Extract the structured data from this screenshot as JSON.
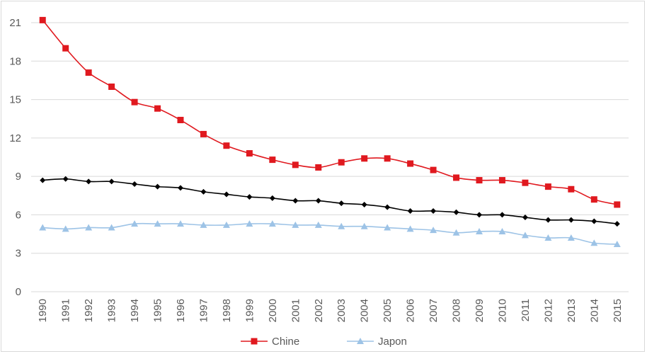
{
  "chart_data": {
    "type": "line",
    "title": "",
    "xlabel": "",
    "ylabel": "",
    "ylim": [
      0,
      21
    ],
    "yticks": [
      0,
      3,
      6,
      9,
      12,
      15,
      18,
      21
    ],
    "grid": true,
    "legend_position": "bottom",
    "categories": [
      "1990",
      "1991",
      "1992",
      "1993",
      "1994",
      "1995",
      "1996",
      "1997",
      "1998",
      "1999",
      "2000",
      "2001",
      "2002",
      "2003",
      "2004",
      "2005",
      "2006",
      "2007",
      "2008",
      "2009",
      "2010",
      "2011",
      "2012",
      "2013",
      "2014",
      "2015"
    ],
    "series": [
      {
        "name": "Chine",
        "color": "#e0191f",
        "marker": "square",
        "show_in_legend": true,
        "values": [
          21.2,
          19.0,
          17.1,
          16.0,
          14.8,
          14.3,
          13.4,
          12.3,
          11.4,
          10.8,
          10.3,
          9.9,
          9.7,
          10.1,
          10.4,
          10.4,
          10.0,
          9.5,
          8.9,
          8.7,
          8.7,
          8.5,
          8.2,
          8.0,
          7.2,
          6.8
        ]
      },
      {
        "name": "Japon",
        "color": "#9dc3e6",
        "marker": "triangle",
        "show_in_legend": true,
        "values": [
          5.0,
          4.9,
          5.0,
          5.0,
          5.3,
          5.3,
          5.3,
          5.2,
          5.2,
          5.3,
          5.3,
          5.2,
          5.2,
          5.1,
          5.1,
          5.0,
          4.9,
          4.8,
          4.6,
          4.7,
          4.7,
          4.4,
          4.2,
          4.2,
          3.8,
          3.7
        ]
      },
      {
        "name": "",
        "color": "#000000",
        "marker": "diamond",
        "show_in_legend": false,
        "values": [
          8.7,
          8.8,
          8.6,
          8.6,
          8.4,
          8.2,
          8.1,
          7.8,
          7.6,
          7.4,
          7.3,
          7.1,
          7.1,
          6.9,
          6.8,
          6.6,
          6.3,
          6.3,
          6.2,
          6.0,
          6.0,
          5.8,
          5.6,
          5.6,
          5.5,
          5.3
        ]
      }
    ]
  }
}
